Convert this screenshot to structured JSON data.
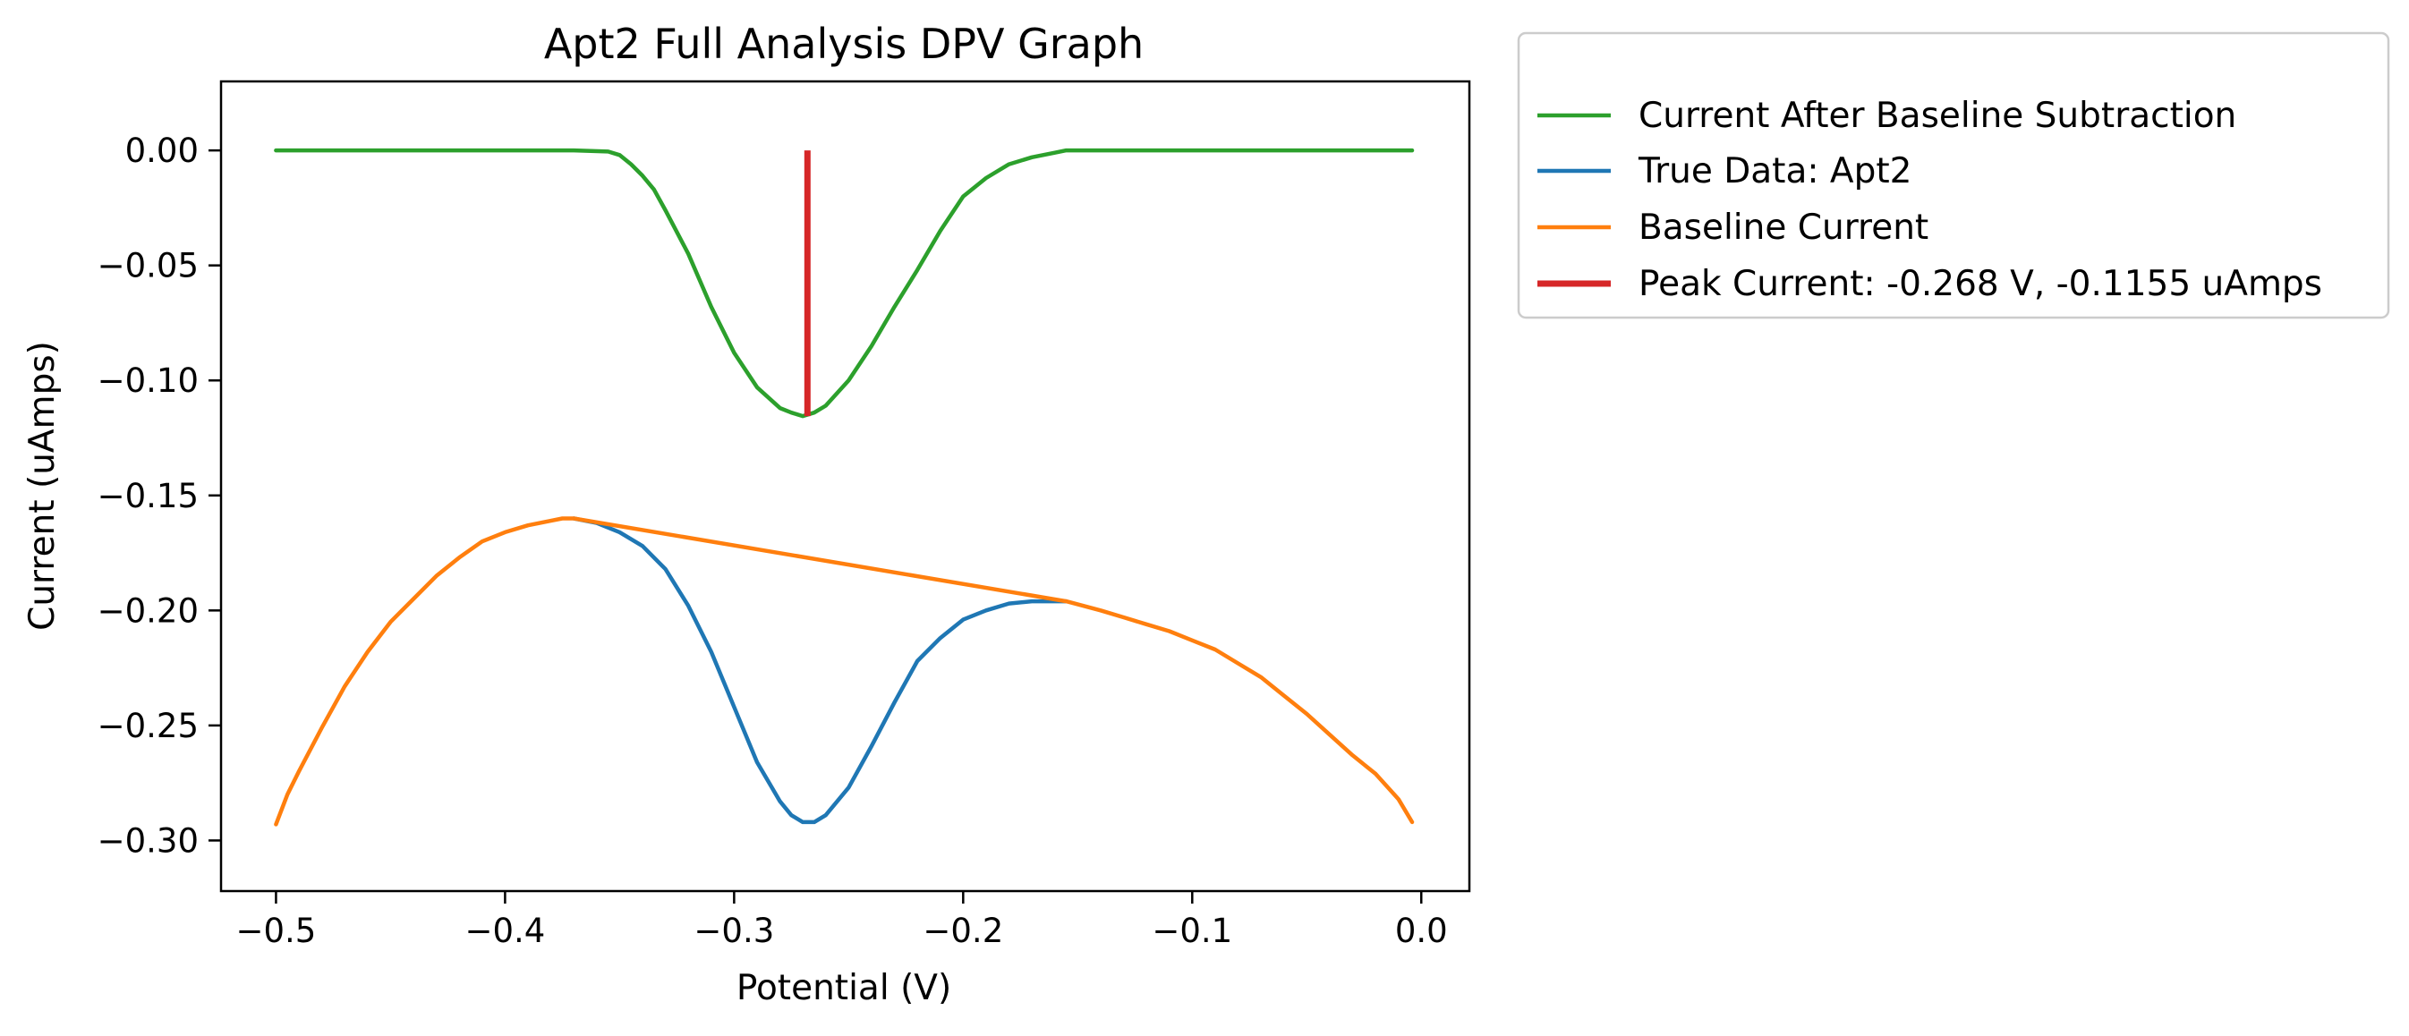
{
  "chart_data": {
    "type": "line",
    "title": "Apt2 Full Analysis DPV Graph",
    "xlabel": "Potential (V)",
    "ylabel": "Current (uAmps)",
    "xlim": [
      -0.524,
      0.021
    ],
    "ylim": [
      -0.322,
      0.03
    ],
    "xticks": [
      -0.5,
      -0.4,
      -0.3,
      -0.2,
      -0.1,
      0.0
    ],
    "xtick_labels": [
      "−0.5",
      "−0.4",
      "−0.3",
      "−0.2",
      "−0.1",
      "0.0"
    ],
    "yticks": [
      0.0,
      -0.05,
      -0.1,
      -0.15,
      -0.2,
      -0.25,
      -0.3
    ],
    "ytick_labels": [
      "0.00",
      "−0.05",
      "−0.10",
      "−0.15",
      "−0.20",
      "−0.25",
      "−0.30"
    ],
    "grid": false,
    "legend_position": "outside-top-right",
    "series": [
      {
        "name": "Current After Baseline Subtraction",
        "color": "#2ca02c",
        "x": [
          -0.5,
          -0.45,
          -0.4,
          -0.37,
          -0.355,
          -0.35,
          -0.345,
          -0.34,
          -0.335,
          -0.33,
          -0.32,
          -0.31,
          -0.3,
          -0.29,
          -0.28,
          -0.275,
          -0.27,
          -0.265,
          -0.26,
          -0.25,
          -0.24,
          -0.23,
          -0.22,
          -0.21,
          -0.2,
          -0.19,
          -0.18,
          -0.17,
          -0.16,
          -0.155,
          -0.15,
          -0.1,
          -0.05,
          -0.004
        ],
        "y": [
          0.0,
          0.0,
          0.0,
          0.0,
          -0.0005,
          -0.002,
          -0.006,
          -0.011,
          -0.017,
          -0.026,
          -0.045,
          -0.068,
          -0.088,
          -0.103,
          -0.112,
          -0.114,
          -0.1155,
          -0.114,
          -0.111,
          -0.1,
          -0.085,
          -0.068,
          -0.052,
          -0.035,
          -0.02,
          -0.012,
          -0.006,
          -0.003,
          -0.001,
          0.0,
          0.0,
          0.0,
          0.0,
          0.0
        ]
      },
      {
        "name": "True Data: Apt2",
        "color": "#1f77b4",
        "x": [
          -0.37,
          -0.36,
          -0.35,
          -0.34,
          -0.33,
          -0.32,
          -0.31,
          -0.3,
          -0.29,
          -0.28,
          -0.275,
          -0.27,
          -0.265,
          -0.26,
          -0.25,
          -0.24,
          -0.23,
          -0.22,
          -0.21,
          -0.2,
          -0.19,
          -0.18,
          -0.17,
          -0.16,
          -0.155
        ],
        "y": [
          -0.16,
          -0.162,
          -0.166,
          -0.172,
          -0.182,
          -0.198,
          -0.218,
          -0.242,
          -0.266,
          -0.283,
          -0.289,
          -0.292,
          -0.292,
          -0.289,
          -0.277,
          -0.259,
          -0.24,
          -0.222,
          -0.212,
          -0.204,
          -0.2,
          -0.197,
          -0.196,
          -0.196,
          -0.196
        ]
      },
      {
        "name": "Baseline Current",
        "color": "#ff7f0e",
        "x": [
          -0.5,
          -0.495,
          -0.49,
          -0.48,
          -0.47,
          -0.46,
          -0.45,
          -0.44,
          -0.43,
          -0.42,
          -0.41,
          -0.4,
          -0.39,
          -0.38,
          -0.375,
          -0.37,
          -0.155,
          -0.14,
          -0.13,
          -0.12,
          -0.11,
          -0.1,
          -0.09,
          -0.08,
          -0.07,
          -0.06,
          -0.05,
          -0.04,
          -0.03,
          -0.02,
          -0.01,
          -0.004
        ],
        "y": [
          -0.293,
          -0.28,
          -0.27,
          -0.251,
          -0.233,
          -0.218,
          -0.205,
          -0.195,
          -0.185,
          -0.177,
          -0.17,
          -0.166,
          -0.163,
          -0.161,
          -0.16,
          -0.16,
          -0.196,
          -0.2,
          -0.203,
          -0.206,
          -0.209,
          -0.213,
          -0.217,
          -0.223,
          -0.229,
          -0.237,
          -0.245,
          -0.254,
          -0.263,
          -0.271,
          -0.282,
          -0.292
        ]
      },
      {
        "name": "Peak Current: -0.268 V, -0.1155 uAmps",
        "color": "#d62728",
        "x": [
          -0.268,
          -0.268
        ],
        "y": [
          0.0,
          -0.1155
        ]
      }
    ]
  }
}
